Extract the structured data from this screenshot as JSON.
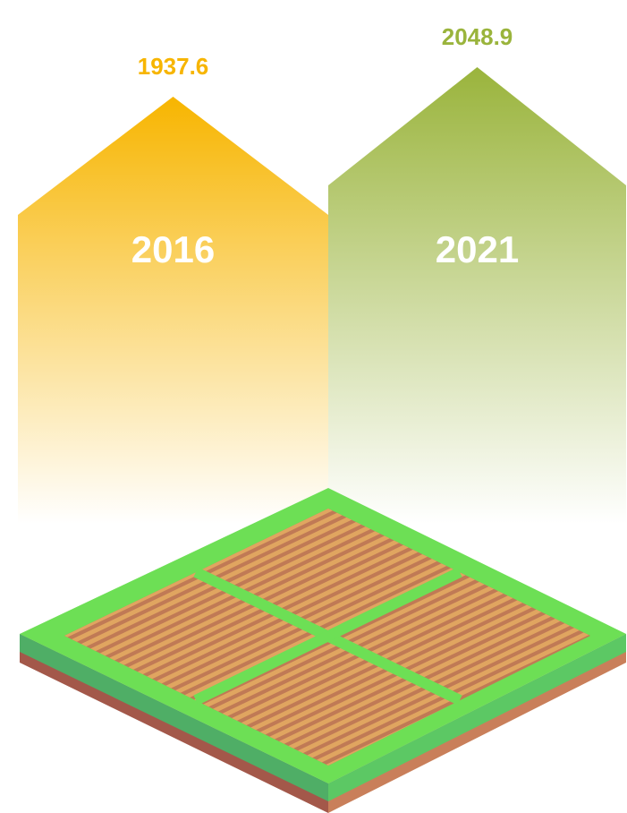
{
  "chart_data": {
    "type": "bar",
    "categories": [
      "2016",
      "2021"
    ],
    "values": [
      1937.6,
      2048.9
    ],
    "colors": [
      "#f7b500",
      "#9ab43c"
    ]
  }
}
